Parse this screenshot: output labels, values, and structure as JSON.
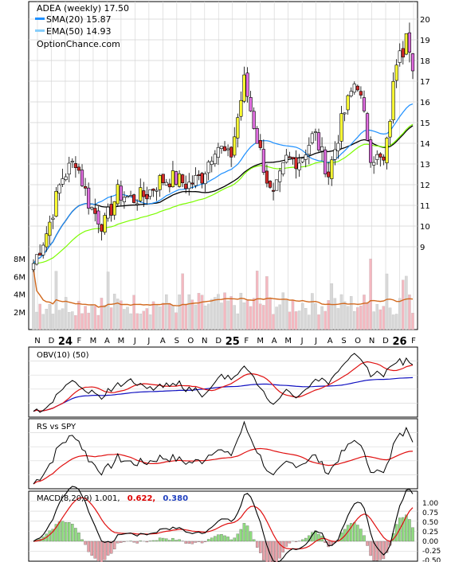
{
  "price_panel": {
    "legend": {
      "ticker": "ADEA (weekly) 17.50",
      "sma": "SMA(20) 15.87",
      "ema": "EMA(50) 14.93",
      "source": "OptionChance.com"
    },
    "price_ticks": [
      "9",
      "10",
      "11",
      "12",
      "13",
      "14",
      "15",
      "16",
      "17",
      "18",
      "19",
      "20"
    ],
    "volume_ticks": [
      "2M",
      "4M",
      "6M",
      "8M"
    ],
    "x_axis": [
      "N",
      "D",
      "24",
      "F",
      "M",
      "A",
      "M",
      "J",
      "J",
      "A",
      "S",
      "O",
      "N",
      "D",
      "25",
      "F",
      "M",
      "A",
      "M",
      "J",
      "J",
      "A",
      "S",
      "O",
      "N",
      "D",
      "26",
      "F"
    ]
  },
  "obv_panel": {
    "label": "OBV(10) (50)"
  },
  "rs_panel": {
    "label": "RS vs SPY"
  },
  "macd_panel": {
    "label": "MACD(8,20,9) 1.001,",
    "signal_value": "0.622,",
    "hist_value": "0.380",
    "ticks": [
      "1.00",
      "0.75",
      "0.50",
      "0.25",
      "0.00",
      "-0.25",
      "-0.50"
    ]
  },
  "colors": {
    "sma": "#1e90ff",
    "ema": "#7cfc00",
    "ma_long": "#000000",
    "up_candle_special": "#ffff33",
    "down_candle_special": "#e06ee0",
    "down_candle": "#d42a2a",
    "volume_up": "#d8d8d8",
    "volume_down": "#f4b8c0",
    "volume_ma": "#d2691e",
    "obv_fast": "#e01010",
    "obv_slow": "#1010c0",
    "rs_ma": "#e01010",
    "macd_signal": "#e01010",
    "hist_pos": "#90dd80",
    "hist_neg": "#e8a0a8",
    "macd_signal_value": "#dd0000",
    "macd_hist_value": "#2040c0"
  },
  "chart_data": {
    "type": "candlestick",
    "frequency": "weekly",
    "x_axis": [
      "N",
      "D",
      "24",
      "F",
      "M",
      "A",
      "M",
      "J",
      "J",
      "A",
      "S",
      "O",
      "N",
      "D",
      "25",
      "F",
      "M",
      "A",
      "M",
      "J",
      "J",
      "A",
      "S",
      "O",
      "N",
      "D",
      "26",
      "F"
    ],
    "close_anchors": [
      {
        "x": "N (2023)",
        "y": 8.2
      },
      {
        "x": "D (2023)",
        "y": 9.8
      },
      {
        "x": "24",
        "y": 12.3
      },
      {
        "x": "F (2024)",
        "y": 13.2
      },
      {
        "x": "M (2024)",
        "y": 11.0
      },
      {
        "x": "A (2024)",
        "y": 10.0
      },
      {
        "x": "M (2024)",
        "y": 11.6
      },
      {
        "x": "J (2024)",
        "y": 11.3
      },
      {
        "x": "J (2024)",
        "y": 11.5
      },
      {
        "x": "A (2024)",
        "y": 12.2
      },
      {
        "x": "S (2024)",
        "y": 12.3
      },
      {
        "x": "O (2024)",
        "y": 12.0
      },
      {
        "x": "N (2024)",
        "y": 12.4
      },
      {
        "x": "D (2024)",
        "y": 14.0
      },
      {
        "x": "25",
        "y": 13.2
      },
      {
        "x": "F (2025)",
        "y": 17.0
      },
      {
        "x": "M (2025)",
        "y": 14.0
      },
      {
        "x": "A (2025)",
        "y": 11.2
      },
      {
        "x": "M (2025)",
        "y": 13.2
      },
      {
        "x": "J (2025)",
        "y": 13.2
      },
      {
        "x": "J (2025)",
        "y": 14.5
      },
      {
        "x": "A (2025)",
        "y": 12.5
      },
      {
        "x": "S (2025)",
        "y": 15.2
      },
      {
        "x": "O (2025)",
        "y": 17.2
      },
      {
        "x": "N (2025)",
        "y": 13.5
      },
      {
        "x": "D (2025)",
        "y": 13.0
      },
      {
        "x": "26",
        "y": 19.0
      },
      {
        "x": "F (2026)",
        "y": 17.5
      }
    ],
    "ylim": [
      8,
      20.5
    ],
    "indicators": {
      "sma20_last": 15.87,
      "ema50_last": 14.93,
      "macd": 1.001,
      "macd_signal": 0.622,
      "macd_hist": 0.38
    },
    "volume_ylim": [
      0,
      9000000
    ],
    "grid": true
  }
}
